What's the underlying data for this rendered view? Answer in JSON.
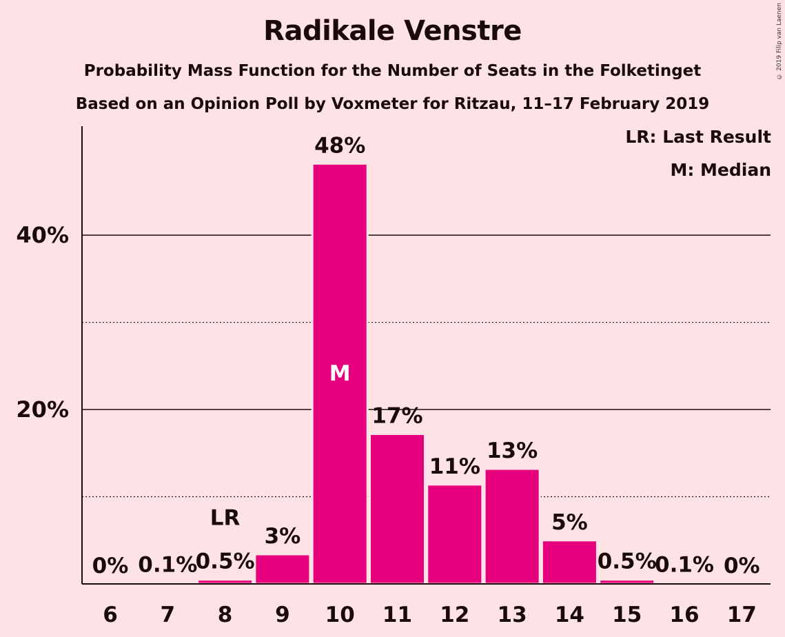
{
  "chart_data": {
    "type": "bar",
    "title": "Radikale Venstre",
    "subtitle": "Probability Mass Function for the Number of Seats in the Folketinget",
    "subtitle2": "Based on an Opinion Poll by Voxmeter for Ritzau, 11–17 February 2019",
    "copyright": "© 2019 Filip van Laenen",
    "legend": [
      "LR: Last Result",
      "M: Median"
    ],
    "legend_position": "top-right",
    "categories": [
      "6",
      "7",
      "8",
      "9",
      "10",
      "11",
      "12",
      "13",
      "14",
      "15",
      "16",
      "17"
    ],
    "values": [
      0,
      0.1,
      0.5,
      3.4,
      48.2,
      17.2,
      11.4,
      13.2,
      5.0,
      0.5,
      0.1,
      0
    ],
    "data_labels": [
      "0%",
      "0.1%",
      "0.5%",
      "3%",
      "48%",
      "17%",
      "11%",
      "13%",
      "5%",
      "0.5%",
      "0.1%",
      "0%"
    ],
    "ylim": [
      0,
      52.5
    ],
    "yticks": [
      {
        "value": 20,
        "label": "20%"
      },
      {
        "value": 40,
        "label": "40%"
      }
    ],
    "minor_gridlines": [
      10,
      30
    ],
    "annotations": [
      {
        "category": "8",
        "text": "LR"
      },
      {
        "category": "10",
        "text": "M"
      }
    ],
    "bar_color": "#e6007e",
    "background": "#fde3e6"
  }
}
